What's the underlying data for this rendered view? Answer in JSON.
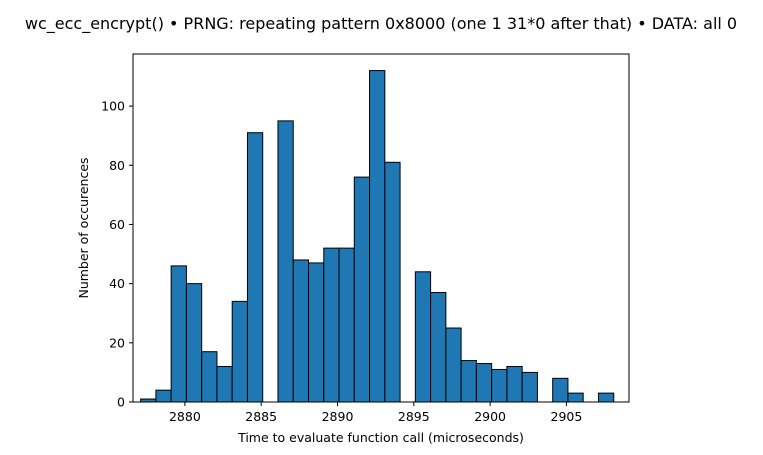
{
  "chart_data": {
    "type": "bar",
    "title": "wc_ecc_encrypt() • PRNG: repeating pattern 0x8000 (one 1 31*0 after that) • DATA: all 0",
    "xlabel": "Time to evaluate function call (microseconds)",
    "ylabel": "Number of occurences",
    "xlim": [
      2876.6,
      2909.1
    ],
    "ylim": [
      0,
      117.6
    ],
    "xticks": [
      2880,
      2885,
      2890,
      2895,
      2900,
      2905
    ],
    "yticks": [
      0,
      20,
      40,
      60,
      80,
      100
    ],
    "bar_color": "#1f77b4",
    "edge_color": "#000000",
    "bins": [
      {
        "start": 2877.1,
        "end": 2878.1,
        "count": 1
      },
      {
        "start": 2878.1,
        "end": 2879.1,
        "count": 4
      },
      {
        "start": 2879.1,
        "end": 2880.1,
        "count": 46
      },
      {
        "start": 2880.1,
        "end": 2881.1,
        "count": 40
      },
      {
        "start": 2881.1,
        "end": 2882.1,
        "count": 17
      },
      {
        "start": 2882.1,
        "end": 2883.1,
        "count": 12
      },
      {
        "start": 2883.1,
        "end": 2884.1,
        "count": 34
      },
      {
        "start": 2884.1,
        "end": 2885.1,
        "count": 91
      },
      {
        "start": 2885.1,
        "end": 2886.1,
        "count": 0
      },
      {
        "start": 2886.1,
        "end": 2887.1,
        "count": 95
      },
      {
        "start": 2887.1,
        "end": 2888.1,
        "count": 48
      },
      {
        "start": 2888.1,
        "end": 2889.1,
        "count": 47
      },
      {
        "start": 2889.1,
        "end": 2890.1,
        "count": 52
      },
      {
        "start": 2890.1,
        "end": 2891.1,
        "count": 52
      },
      {
        "start": 2891.1,
        "end": 2892.1,
        "count": 76
      },
      {
        "start": 2892.1,
        "end": 2893.1,
        "count": 112
      },
      {
        "start": 2893.1,
        "end": 2894.1,
        "count": 81
      },
      {
        "start": 2894.1,
        "end": 2895.1,
        "count": 0
      },
      {
        "start": 2895.1,
        "end": 2896.1,
        "count": 44
      },
      {
        "start": 2896.1,
        "end": 2897.1,
        "count": 37
      },
      {
        "start": 2897.1,
        "end": 2898.1,
        "count": 25
      },
      {
        "start": 2898.1,
        "end": 2899.1,
        "count": 14
      },
      {
        "start": 2899.1,
        "end": 2900.1,
        "count": 13
      },
      {
        "start": 2900.1,
        "end": 2901.1,
        "count": 11
      },
      {
        "start": 2901.1,
        "end": 2902.1,
        "count": 12
      },
      {
        "start": 2902.1,
        "end": 2903.1,
        "count": 10
      },
      {
        "start": 2903.1,
        "end": 2904.1,
        "count": 0
      },
      {
        "start": 2904.1,
        "end": 2905.1,
        "count": 8
      },
      {
        "start": 2905.1,
        "end": 2906.1,
        "count": 3
      },
      {
        "start": 2906.1,
        "end": 2907.1,
        "count": 0
      },
      {
        "start": 2907.1,
        "end": 2908.1,
        "count": 3
      },
      {
        "start": 2908.1,
        "end": 2909.1,
        "count": 0
      }
    ],
    "grid": false,
    "legend": "none"
  }
}
